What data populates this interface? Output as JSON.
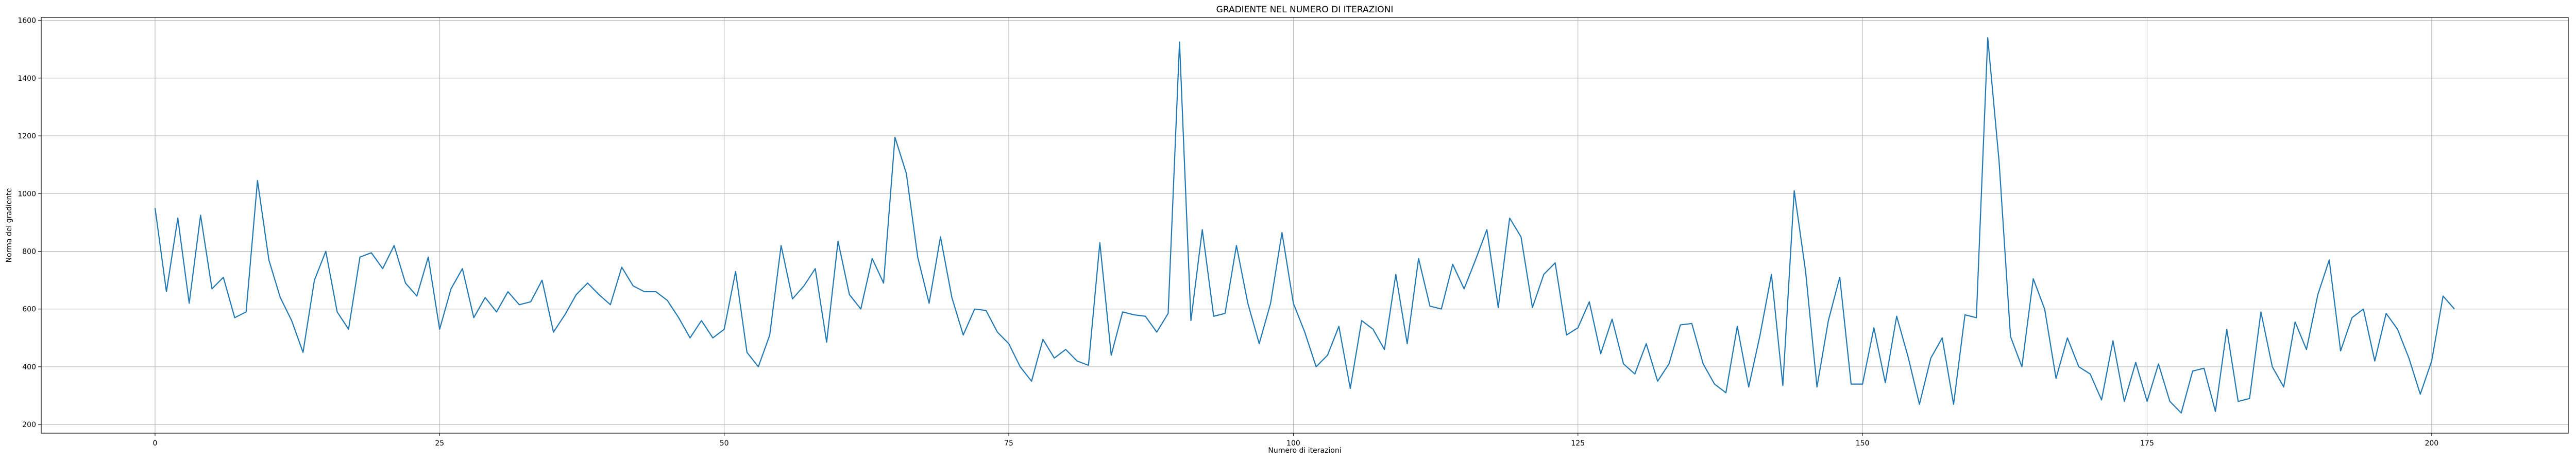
{
  "chart_data": {
    "type": "line",
    "title": "GRADIENTE NEL NUMERO DI ITERAZIONI",
    "xlabel": "Numero di iterazioni",
    "ylabel": "Norma del gradiente",
    "xlim": [
      -10,
      212
    ],
    "ylim": [
      170,
      1610
    ],
    "xticks": [
      0,
      25,
      50,
      75,
      100,
      125,
      150,
      175,
      200
    ],
    "yticks": [
      200,
      400,
      600,
      800,
      1000,
      1200,
      1400,
      1600
    ],
    "grid": true,
    "line_color": "#1f77b4",
    "series": [
      {
        "x": [
          0,
          1,
          2,
          3,
          4,
          5,
          6,
          7,
          8,
          9,
          10,
          11,
          12,
          13,
          14,
          15,
          16,
          17,
          18,
          19,
          20,
          21,
          22,
          23,
          24,
          25,
          26,
          27,
          28,
          29,
          30,
          31,
          32,
          33,
          34,
          35,
          36,
          37,
          38,
          39,
          40,
          41,
          42,
          43,
          44,
          45,
          46,
          47,
          48,
          49,
          50,
          51,
          52,
          53,
          54,
          55,
          56,
          57,
          58,
          59,
          60,
          61,
          62,
          63,
          64,
          65,
          66,
          67,
          68,
          69,
          70,
          71,
          72,
          73,
          74,
          75,
          76,
          77,
          78,
          79,
          80,
          81,
          82,
          83,
          84,
          85,
          86,
          87,
          88,
          89,
          90,
          91,
          92,
          93,
          94,
          95,
          96,
          97,
          98,
          99,
          100,
          101,
          102,
          103,
          104,
          105,
          106,
          107,
          108,
          109,
          110,
          111,
          112,
          113,
          114,
          115,
          116,
          117,
          118,
          119,
          120,
          121,
          122,
          123,
          124,
          125,
          126,
          127,
          128,
          129,
          130,
          131,
          132,
          133,
          134,
          135,
          136,
          137,
          138,
          139,
          140,
          141,
          142,
          143,
          144,
          145,
          146,
          147,
          148,
          149,
          150,
          151,
          152,
          153,
          154,
          155,
          156,
          157,
          158,
          159,
          160,
          161,
          162,
          163,
          164,
          165,
          166,
          167,
          168,
          169,
          170,
          171,
          172,
          173,
          174,
          175,
          176,
          177,
          178,
          179,
          180,
          181,
          182,
          183,
          184,
          185,
          186,
          187,
          188,
          189,
          190,
          191,
          192,
          193,
          194,
          195,
          196,
          197,
          198,
          199,
          200,
          201,
          202
        ],
        "y": [
          950,
          660,
          915,
          620,
          925,
          670,
          710,
          570,
          590,
          1045,
          770,
          640,
          560,
          450,
          700,
          800,
          590,
          530,
          780,
          795,
          740,
          820,
          690,
          645,
          780,
          530,
          670,
          740,
          570,
          640,
          590,
          660,
          615,
          625,
          700,
          520,
          580,
          650,
          690,
          650,
          615,
          745,
          680,
          660,
          660,
          630,
          570,
          500,
          560,
          500,
          530,
          730,
          450,
          400,
          510,
          820,
          635,
          680,
          740,
          485,
          835,
          650,
          600,
          775,
          690,
          1195,
          1070,
          780,
          620,
          850,
          640,
          510,
          600,
          595,
          520,
          480,
          400,
          350,
          495,
          430,
          460,
          420,
          405,
          830,
          440,
          590,
          580,
          575,
          520,
          585,
          1525,
          560,
          875,
          575,
          585,
          820,
          620,
          480,
          620,
          865,
          620,
          520,
          400,
          440,
          540,
          325,
          560,
          530,
          460,
          720,
          480,
          775,
          610,
          600,
          755,
          670,
          770,
          875,
          605,
          915,
          850,
          605,
          720,
          760,
          510,
          535,
          625,
          445,
          565,
          410,
          375,
          480,
          350,
          410,
          545,
          550,
          410,
          340,
          310,
          540,
          330,
          510,
          720,
          335,
          1010,
          730,
          330,
          560,
          710,
          340,
          340,
          535,
          345,
          575,
          435,
          270,
          430,
          500,
          270,
          580,
          570,
          1540,
          1110,
          505,
          400,
          705,
          600,
          360,
          500,
          400,
          375,
          285,
          490,
          280,
          415,
          280,
          410,
          280,
          240,
          385,
          395,
          245,
          530,
          280,
          290,
          590,
          400,
          330,
          555,
          460,
          650,
          770,
          455,
          570,
          600,
          420,
          585,
          530,
          430,
          305,
          420,
          645,
          600
        ]
      }
    ]
  }
}
